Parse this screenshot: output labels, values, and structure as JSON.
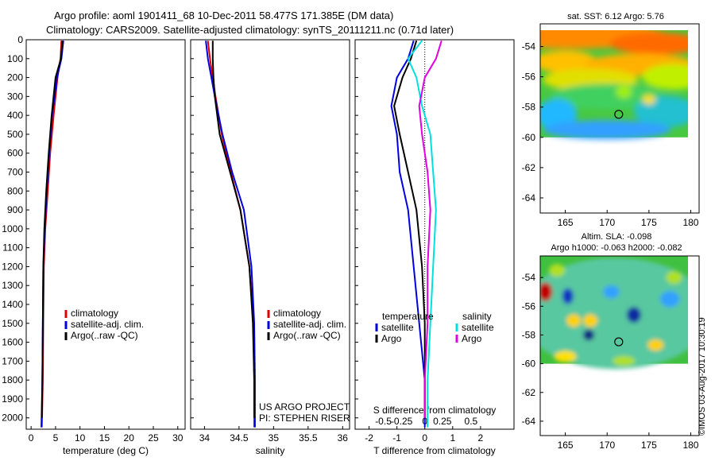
{
  "header": {
    "title_line1": "Argo profile: aoml 1901411_68 10-Dec-2011 58.477S 171.385E (DM data)",
    "title_line2": "Climatology: CARS2009. Satellite-adjusted climatology: synTS_20111211.nc (0.71d later)"
  },
  "colors": {
    "climatology": "#e00000",
    "satellite": "#0000e0",
    "argo": "#000000",
    "sat_salinity": "#00e0e0",
    "argo_salinity": "#e000e0"
  },
  "footer": {
    "stamp": "©IMOS 03-Aug-2017 10:30:19"
  },
  "chart_data": [
    {
      "type": "line",
      "panel": "temperature",
      "xlabel": "temperature (deg C)",
      "ylabel": "",
      "xlim": [
        -1,
        31.5
      ],
      "ylim": [
        2060,
        0
      ],
      "xticks": [
        0,
        5,
        10,
        15,
        20,
        25,
        30
      ],
      "yticks": [
        0,
        100,
        200,
        300,
        400,
        500,
        600,
        700,
        800,
        900,
        1000,
        1100,
        1200,
        1300,
        1400,
        1500,
        1600,
        1700,
        1800,
        1900,
        2000
      ],
      "legend": [
        {
          "label": "climatology",
          "color": "#e00000"
        },
        {
          "label": "satellite-adj. clim.",
          "color": "#0000e0"
        },
        {
          "label": "Argo(..raw -QC)",
          "color": "#000000"
        }
      ],
      "series": [
        {
          "name": "climatology",
          "color": "#e00000",
          "x": [
            6.2,
            6.0,
            5.4,
            4.6,
            3.9,
            3.4,
            2.9,
            2.6,
            2.5,
            2.4,
            2.2
          ],
          "y": [
            5,
            100,
            200,
            400,
            600,
            800,
            1000,
            1200,
            1500,
            1800,
            2050
          ]
        },
        {
          "name": "satellite-adj. clim.",
          "color": "#0000e0",
          "x": [
            6.6,
            6.2,
            5.3,
            4.3,
            3.7,
            3.2,
            2.8,
            2.5,
            2.4,
            2.3,
            2.1
          ],
          "y": [
            5,
            100,
            200,
            400,
            600,
            800,
            1000,
            1200,
            1500,
            1800,
            2050
          ]
        },
        {
          "name": "Argo(..raw -QC)",
          "color": "#000000",
          "x": [
            6.4,
            6.1,
            5.0,
            4.2,
            3.6,
            3.1,
            2.7,
            2.5,
            2.4,
            2.3,
            2.2
          ],
          "y": [
            5,
            100,
            200,
            400,
            600,
            800,
            1000,
            1200,
            1500,
            1800,
            2000
          ]
        }
      ]
    },
    {
      "type": "line",
      "panel": "salinity",
      "xlabel": "salinity",
      "xlim": [
        33.8,
        36.1
      ],
      "ylim": [
        2060,
        0
      ],
      "xticks": [
        34,
        34.5,
        35,
        35.5,
        36
      ],
      "legend": [
        {
          "label": "climatology",
          "color": "#e00000"
        },
        {
          "label": "satellite-adj. clim.",
          "color": "#0000e0"
        },
        {
          "label": "Argo(..raw -QC)",
          "color": "#000000"
        }
      ],
      "annotations": [
        "US ARGO PROJECT",
        "PI: STEPHEN RISER"
      ],
      "series": [
        {
          "name": "climatology",
          "color": "#e00000",
          "x": [
            34.05,
            34.08,
            34.12,
            34.16,
            34.25,
            34.38,
            34.52,
            34.65,
            34.71,
            34.72,
            34.72
          ],
          "y": [
            5,
            100,
            200,
            300,
            500,
            700,
            900,
            1200,
            1500,
            1800,
            2050
          ]
        },
        {
          "name": "satellite-adj. clim.",
          "color": "#0000e0",
          "x": [
            34.02,
            34.05,
            34.1,
            34.15,
            34.26,
            34.4,
            34.57,
            34.68,
            34.72,
            34.73,
            34.73
          ],
          "y": [
            5,
            100,
            200,
            300,
            500,
            700,
            900,
            1200,
            1500,
            1800,
            2050
          ]
        },
        {
          "name": "Argo(..raw -QC)",
          "color": "#000000",
          "x": [
            34.12,
            34.12,
            34.13,
            34.15,
            34.22,
            34.37,
            34.52,
            34.65,
            34.7,
            34.72,
            34.72
          ],
          "y": [
            5,
            100,
            200,
            300,
            500,
            700,
            900,
            1200,
            1500,
            1800,
            2000
          ]
        }
      ]
    },
    {
      "type": "line",
      "panel": "difference",
      "xlabel": "T difference from climatology",
      "xlabel_top": "S difference from climatology",
      "xlim": [
        -2.5,
        3.2
      ],
      "ylim": [
        2060,
        0
      ],
      "xticks_bottom": [
        -2,
        -1,
        0,
        1,
        2
      ],
      "xticks_top": [
        -0.5,
        -0.25,
        0,
        0.25,
        0.5
      ],
      "legend_temperature": {
        "title": "temperature",
        "items": [
          {
            "label": "satellite",
            "color": "#0000e0"
          },
          {
            "label": "Argo",
            "color": "#000000"
          }
        ]
      },
      "legend_salinity": {
        "title": "salinity",
        "items": [
          {
            "label": "satellite",
            "color": "#00e0e0"
          },
          {
            "label": "Argo",
            "color": "#e000e0"
          }
        ]
      },
      "series": [
        {
          "name": "T satellite",
          "color": "#0000e0",
          "x": [
            -0.4,
            -0.6,
            -1.0,
            -1.2,
            -1.0,
            -0.9,
            -0.6,
            -0.4,
            -0.2,
            0.0,
            0.0
          ],
          "y": [
            5,
            100,
            200,
            350,
            500,
            700,
            900,
            1200,
            1500,
            1800,
            2050
          ]
        },
        {
          "name": "T Argo",
          "color": "#000000",
          "x": [
            -0.3,
            -0.5,
            -0.8,
            -1.1,
            -0.9,
            -0.6,
            -0.3,
            -0.1,
            0.0,
            0.0,
            0.0
          ],
          "y": [
            5,
            100,
            200,
            350,
            500,
            700,
            900,
            1200,
            1500,
            1800,
            2000
          ]
        },
        {
          "name": "S satellite",
          "color": "#00e0e0",
          "x": [
            -0.1,
            -0.6,
            -0.3,
            -0.1,
            0.2,
            0.3,
            0.4,
            0.3,
            0.2,
            0.1,
            0.1
          ],
          "y": [
            5,
            100,
            200,
            350,
            500,
            700,
            900,
            1200,
            1500,
            1800,
            2050
          ]
        },
        {
          "name": "S Argo",
          "color": "#e000e0",
          "x": [
            0.6,
            0.4,
            0.0,
            -0.2,
            -0.1,
            0.1,
            0.2,
            0.1,
            0.1,
            0.0,
            0.0
          ],
          "y": [
            5,
            100,
            200,
            350,
            500,
            700,
            900,
            1200,
            1500,
            1800,
            2000
          ]
        }
      ]
    },
    {
      "type": "heatmap",
      "panel": "map-sst",
      "title": "sat. SST: 6.12 Argo: 5.76",
      "xlim": [
        162,
        181
      ],
      "ylim": [
        -65,
        -52.5
      ],
      "xticks": [
        165,
        170,
        175,
        180
      ],
      "yticks": [
        -54,
        -56,
        -58,
        -60,
        -62,
        -64
      ],
      "marker": {
        "lon": 171.385,
        "lat": -58.477
      }
    },
    {
      "type": "heatmap",
      "panel": "map-sla",
      "title": "Altim. SLA: -0.098",
      "subtitle": "Argo h1000: -0.063 h2000: -0.082",
      "xlim": [
        162,
        181
      ],
      "ylim": [
        -65,
        -52.5
      ],
      "xticks": [
        165,
        170,
        175,
        180
      ],
      "yticks": [
        -54,
        -56,
        -58,
        -60,
        -62,
        -64
      ],
      "marker": {
        "lon": 171.385,
        "lat": -58.477
      }
    }
  ]
}
